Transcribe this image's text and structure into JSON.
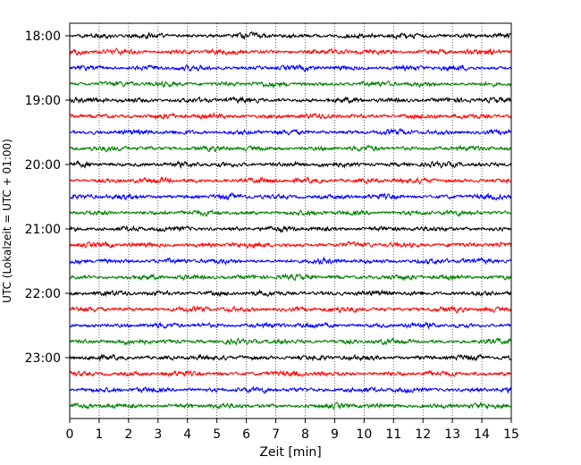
{
  "chart_data": {
    "type": "line",
    "title": "",
    "xlabel": "Zeit  [min]",
    "ylabel": "UTC (Lokalzeit = UTC + 01:00)",
    "xlim": [
      0,
      15
    ],
    "x_ticks": [
      "0",
      "1",
      "2",
      "3",
      "4",
      "5",
      "6",
      "7",
      "8",
      "9",
      "10",
      "11",
      "12",
      "13",
      "14",
      "15"
    ],
    "y_ticks": [
      "18:00",
      "19:00",
      "20:00",
      "21:00",
      "22:00",
      "23:00"
    ],
    "vertical_grid": "dotted",
    "series_colors": [
      "#000000",
      "#ff0000",
      "#0000ff",
      "#008000"
    ],
    "traces": [
      {
        "start": "18:00",
        "color": "#000000"
      },
      {
        "start": "18:15",
        "color": "#ff0000"
      },
      {
        "start": "18:30",
        "color": "#0000ff"
      },
      {
        "start": "18:45",
        "color": "#008000"
      },
      {
        "start": "19:00",
        "color": "#000000"
      },
      {
        "start": "19:15",
        "color": "#ff0000"
      },
      {
        "start": "19:30",
        "color": "#0000ff"
      },
      {
        "start": "19:45",
        "color": "#008000"
      },
      {
        "start": "20:00",
        "color": "#000000"
      },
      {
        "start": "20:15",
        "color": "#ff0000"
      },
      {
        "start": "20:30",
        "color": "#0000ff"
      },
      {
        "start": "20:45",
        "color": "#008000"
      },
      {
        "start": "21:00",
        "color": "#000000"
      },
      {
        "start": "21:15",
        "color": "#ff0000"
      },
      {
        "start": "21:30",
        "color": "#0000ff"
      },
      {
        "start": "21:45",
        "color": "#008000"
      },
      {
        "start": "22:00",
        "color": "#000000"
      },
      {
        "start": "22:15",
        "color": "#ff0000"
      },
      {
        "start": "22:30",
        "color": "#0000ff"
      },
      {
        "start": "22:45",
        "color": "#008000"
      },
      {
        "start": "23:00",
        "color": "#000000"
      },
      {
        "start": "23:15",
        "color": "#ff0000"
      },
      {
        "start": "23:30",
        "color": "#0000ff"
      },
      {
        "start": "23:45",
        "color": "#008000"
      }
    ]
  }
}
